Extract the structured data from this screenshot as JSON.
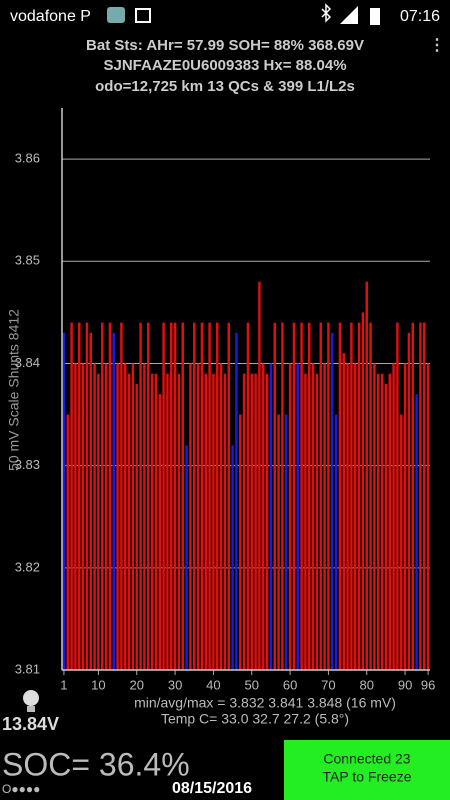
{
  "status_bar": {
    "carrier": "vodafone P",
    "time": "07:16"
  },
  "header": {
    "line1": "Bat Sts: AHr= 57.99 SOH= 88% 368.69V",
    "line2": "SJNFAAZE0U6009383   Hx= 88.04%",
    "line3": "odo=12,725 km 13 QCs & 399 L1/L2s"
  },
  "chart_data": {
    "type": "bar",
    "ylabel": "50 mV Scale   Shunts 8412",
    "x": [
      1,
      2,
      3,
      4,
      5,
      6,
      7,
      8,
      9,
      10,
      11,
      12,
      13,
      14,
      15,
      16,
      17,
      18,
      19,
      20,
      21,
      22,
      23,
      24,
      25,
      26,
      27,
      28,
      29,
      30,
      31,
      32,
      33,
      34,
      35,
      36,
      37,
      38,
      39,
      40,
      41,
      42,
      43,
      44,
      45,
      46,
      47,
      48,
      49,
      50,
      51,
      52,
      53,
      54,
      55,
      56,
      57,
      58,
      59,
      60,
      61,
      62,
      63,
      64,
      65,
      66,
      67,
      68,
      69,
      70,
      71,
      72,
      73,
      74,
      75,
      76,
      77,
      78,
      79,
      80,
      81,
      82,
      83,
      84,
      85,
      86,
      87,
      88,
      89,
      90,
      91,
      92,
      93,
      94,
      95,
      96
    ],
    "values": [
      3.843,
      3.835,
      3.844,
      3.84,
      3.844,
      3.84,
      3.844,
      3.843,
      3.84,
      3.839,
      3.844,
      3.84,
      3.844,
      3.843,
      3.84,
      3.844,
      3.84,
      3.839,
      3.84,
      3.838,
      3.844,
      3.84,
      3.844,
      3.839,
      3.839,
      3.837,
      3.844,
      3.839,
      3.844,
      3.844,
      3.839,
      3.844,
      3.832,
      3.84,
      3.844,
      3.84,
      3.844,
      3.839,
      3.844,
      3.839,
      3.844,
      3.84,
      3.839,
      3.844,
      3.832,
      3.843,
      3.835,
      3.839,
      3.844,
      3.839,
      3.839,
      3.848,
      3.84,
      3.839,
      3.84,
      3.844,
      3.835,
      3.844,
      3.835,
      3.84,
      3.844,
      3.84,
      3.844,
      3.839,
      3.844,
      3.84,
      3.839,
      3.844,
      3.84,
      3.844,
      3.843,
      3.835,
      3.844,
      3.841,
      3.84,
      3.844,
      3.84,
      3.844,
      3.845,
      3.848,
      3.844,
      3.84,
      3.839,
      3.839,
      3.838,
      3.839,
      3.84,
      3.844,
      3.835,
      3.84,
      3.843,
      3.844,
      3.837,
      3.844,
      3.844,
      3.84
    ],
    "colors": [
      "#1a1ae0",
      "#e01010",
      "#e01010",
      "#e01010",
      "#e01010",
      "#e01010",
      "#e01010",
      "#e01010",
      "#e01010",
      "#e01010",
      "#e01010",
      "#e01010",
      "#e01010",
      "#1a1ae0",
      "#e01010",
      "#e01010",
      "#e01010",
      "#e01010",
      "#e01010",
      "#e01010",
      "#e01010",
      "#e01010",
      "#e01010",
      "#e01010",
      "#e01010",
      "#e01010",
      "#e01010",
      "#e01010",
      "#e01010",
      "#e01010",
      "#e01010",
      "#e01010",
      "#1a1ae0",
      "#e01010",
      "#e01010",
      "#e01010",
      "#e01010",
      "#e01010",
      "#e01010",
      "#e01010",
      "#e01010",
      "#e01010",
      "#e01010",
      "#e01010",
      "#1a1ae0",
      "#1a1ae0",
      "#e01010",
      "#e01010",
      "#e01010",
      "#e01010",
      "#e01010",
      "#e01010",
      "#e01010",
      "#e01010",
      "#1a1ae0",
      "#e01010",
      "#e01010",
      "#e01010",
      "#1a1ae0",
      "#e01010",
      "#e01010",
      "#1a1ae0",
      "#e01010",
      "#e01010",
      "#e01010",
      "#e01010",
      "#e01010",
      "#e01010",
      "#e01010",
      "#e01010",
      "#1a1ae0",
      "#1a1ae0",
      "#e01010",
      "#e01010",
      "#e01010",
      "#e01010",
      "#e01010",
      "#e01010",
      "#e01010",
      "#e01010",
      "#e01010",
      "#e01010",
      "#e01010",
      "#e01010",
      "#e01010",
      "#e01010",
      "#e01010",
      "#e01010",
      "#e01010",
      "#e01010",
      "#e01010",
      "#e01010",
      "#1a1ae0",
      "#e01010",
      "#e01010",
      "#e01010"
    ],
    "xlim": [
      0.5,
      96.5
    ],
    "xticks": [
      1,
      10,
      20,
      30,
      40,
      50,
      60,
      70,
      80,
      90,
      96
    ],
    "ylim": [
      3.81,
      3.865
    ],
    "yticks": [
      3.81,
      3.82,
      3.83,
      3.84,
      3.85,
      3.86
    ],
    "grid": true
  },
  "footer": {
    "stats": "min/avg/max = 3.832 3.841 3.848  (16 mV)",
    "temp": "Temp C= 33.0  32.7  27.2  (5.8°)",
    "pack_voltage": "13.84V",
    "soc": "SOC= 36.4%",
    "dots": "O●●●●",
    "date": "08/15/2016",
    "button_line1": "Connected 23",
    "button_line2": "TAP to Freeze"
  }
}
